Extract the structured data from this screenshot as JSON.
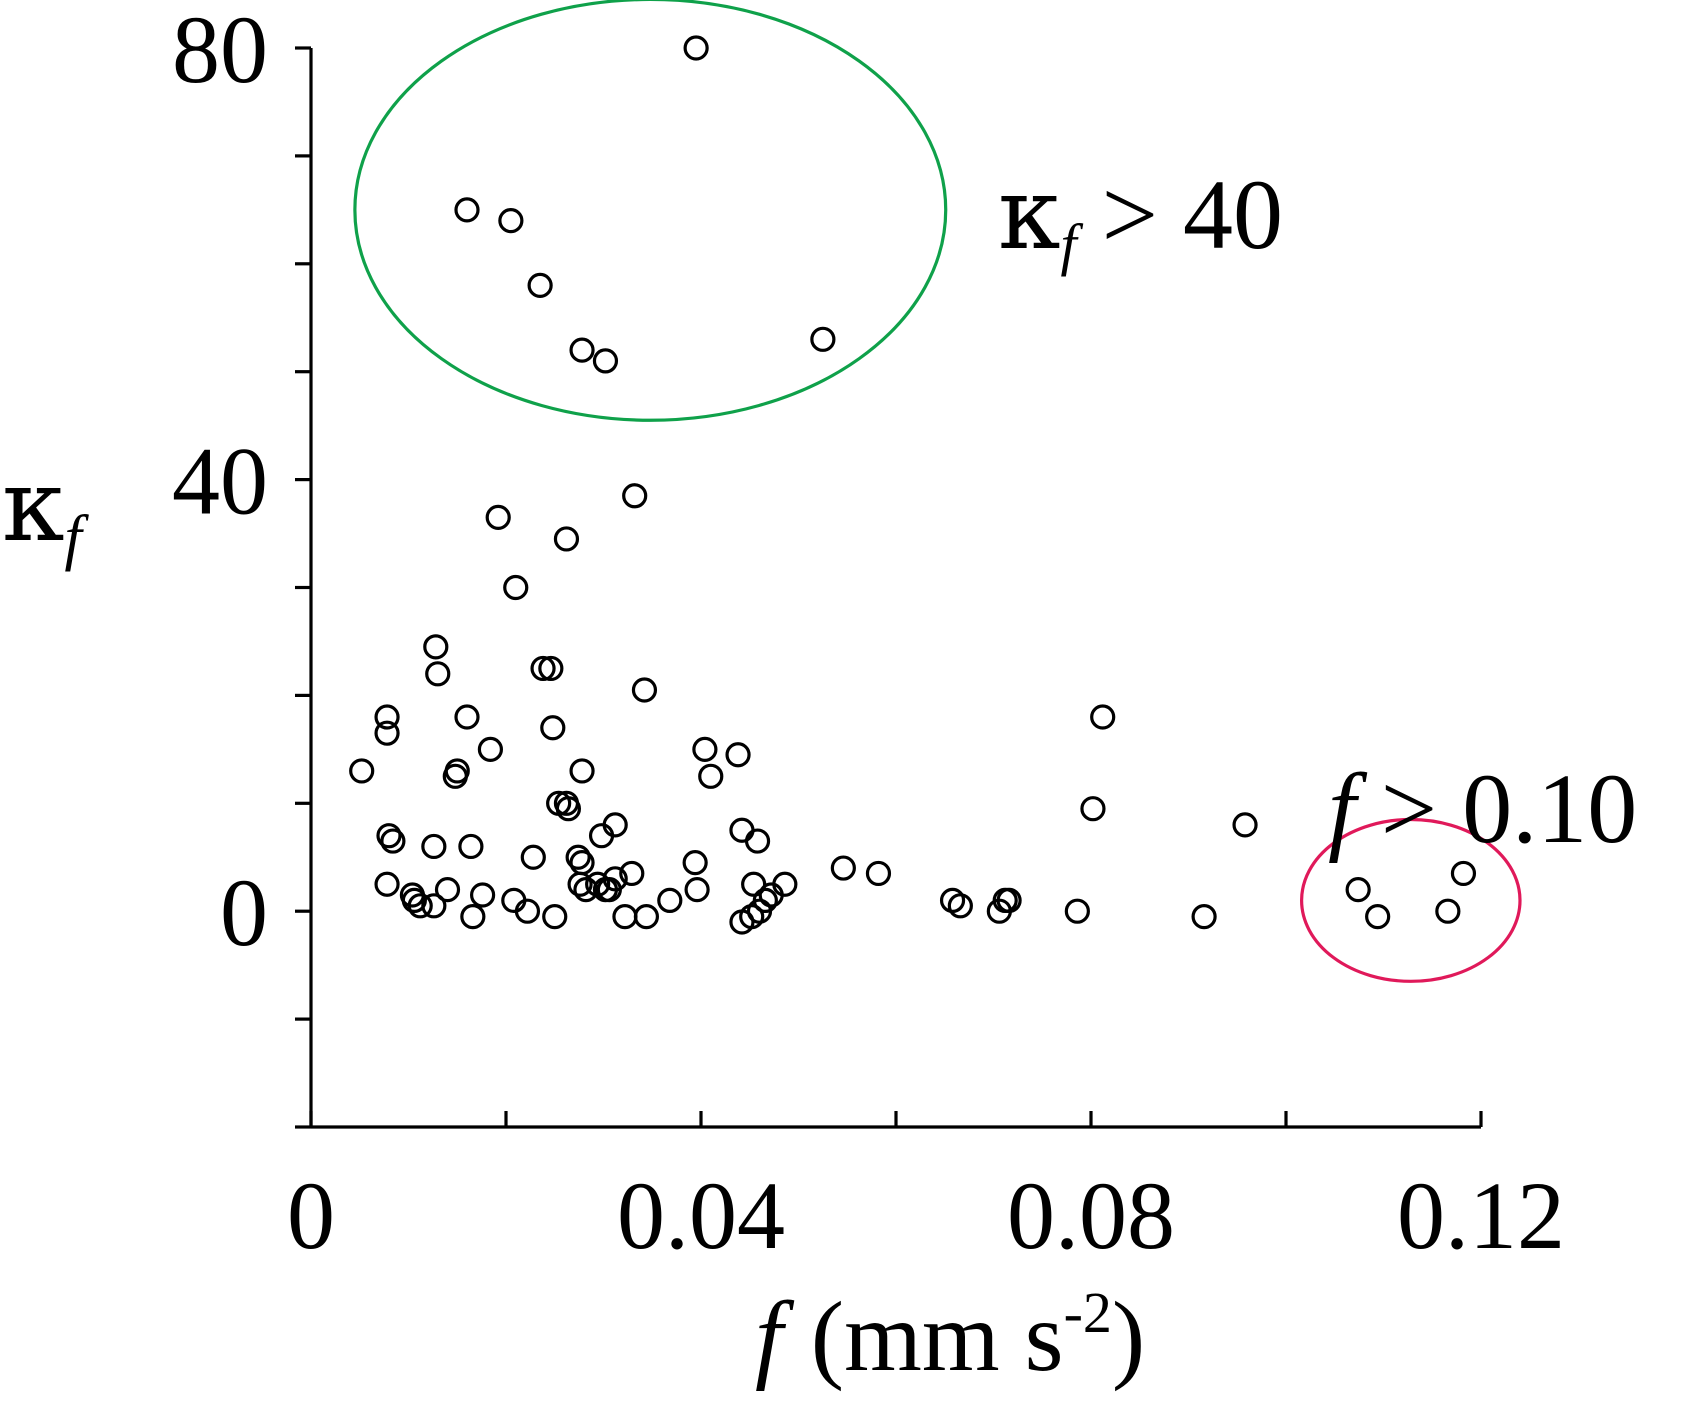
{
  "chart_data": {
    "type": "scatter",
    "title": "",
    "xlabel": "f (mm s-2)",
    "xlabel_parts": {
      "symbol": "f",
      "unit": "(mm s",
      "exponent": "-2",
      "close": ")"
    },
    "ylabel": "κf",
    "ylabel_parts": {
      "symbol": "κ",
      "subscript": "f"
    },
    "xlim": [
      0,
      0.12
    ],
    "ylim": [
      -20,
      80
    ],
    "x_ticks": [
      0,
      0.02,
      0.04,
      0.06,
      0.08,
      0.1,
      0.12
    ],
    "y_ticks": [
      -20,
      -10,
      0,
      10,
      20,
      30,
      40,
      50,
      60,
      70,
      80
    ],
    "x_tick_labels": [
      {
        "value": 0,
        "label": "0"
      },
      {
        "value": 0.04,
        "label": "0.04"
      },
      {
        "value": 0.08,
        "label": "0.08"
      },
      {
        "value": 0.12,
        "label": "0.12"
      }
    ],
    "y_tick_labels": [
      {
        "value": 0,
        "label": "0"
      },
      {
        "value": 40,
        "label": "40"
      },
      {
        "value": 80,
        "label": "80"
      }
    ],
    "grid": false,
    "series": [
      {
        "name": "observations",
        "marker": "open-circle",
        "x": [
          0.0395,
          0.016,
          0.0205,
          0.0235,
          0.0278,
          0.0302,
          0.0525,
          0.0192,
          0.0332,
          0.0262,
          0.021,
          0.0128,
          0.013,
          0.0238,
          0.0246,
          0.0342,
          0.0078,
          0.0078,
          0.016,
          0.0248,
          0.0184,
          0.0278,
          0.0404,
          0.015,
          0.0148,
          0.0052,
          0.041,
          0.0438,
          0.0812,
          0.0262,
          0.0254,
          0.0264,
          0.0312,
          0.0298,
          0.0442,
          0.0458,
          0.0802,
          0.0958,
          0.008,
          0.0084,
          0.0126,
          0.0164,
          0.0228,
          0.0274,
          0.0278,
          0.0394,
          0.0329,
          0.0312,
          0.0294,
          0.0276,
          0.0302,
          0.0546,
          0.0582,
          0.0454,
          0.0486,
          0.0078,
          0.0104,
          0.014,
          0.0176,
          0.0208,
          0.0306,
          0.0282,
          0.0396,
          0.0368,
          0.0472,
          0.0466,
          0.0106,
          0.0112,
          0.0126,
          0.0222,
          0.0166,
          0.025,
          0.0322,
          0.0344,
          0.0442,
          0.0452,
          0.046,
          0.0658,
          0.0666,
          0.0706,
          0.0712,
          0.0716,
          0.0786,
          0.0916,
          0.1074,
          0.1094,
          0.1166,
          0.1182
        ],
        "y": [
          80,
          65,
          64,
          58,
          52,
          51,
          53,
          36.5,
          38.5,
          34.5,
          30,
          24.5,
          22,
          22.5,
          22.5,
          20.5,
          18,
          16.5,
          18,
          17,
          15,
          13,
          15,
          13,
          12.5,
          13,
          12.5,
          14.5,
          18,
          10,
          10,
          9.5,
          8,
          7,
          7.5,
          6.5,
          9.5,
          8,
          7,
          6.5,
          6,
          6,
          5,
          5,
          4.5,
          4.5,
          3.5,
          3,
          2.5,
          2.5,
          2,
          4,
          3.5,
          2.5,
          2.5,
          2.5,
          1.5,
          2,
          1.5,
          1,
          2,
          2,
          2,
          1,
          1.5,
          1,
          1,
          0.5,
          0.5,
          0,
          -0.5,
          -0.5,
          -0.5,
          -0.5,
          -1,
          -0.5,
          0,
          1,
          0.5,
          0,
          1,
          1,
          0,
          -0.5,
          2,
          -0.5,
          0,
          3.5
        ]
      }
    ],
    "annotations": [
      {
        "name": "high-kappa-group",
        "shape": "ellipse",
        "color": "#0fa14a",
        "cx": 0.0348,
        "cy": 65,
        "rx": 0.0303,
        "ry": 19.5,
        "label_parts": [
          "κ",
          "f",
          " > 40"
        ],
        "label_text": "κf > 40",
        "label_anchor": {
          "x": 0.071,
          "y": 65
        }
      },
      {
        "name": "high-f-group",
        "shape": "ellipse",
        "color": "#e0195a",
        "cx": 0.1128,
        "cy": 1,
        "rx": 0.0112,
        "ry": 7.5,
        "label_parts": [
          "f",
          " > 0.10"
        ],
        "label_text": "f > 0.10",
        "label_anchor": {
          "x": 0.1135,
          "y": 13
        }
      }
    ]
  }
}
